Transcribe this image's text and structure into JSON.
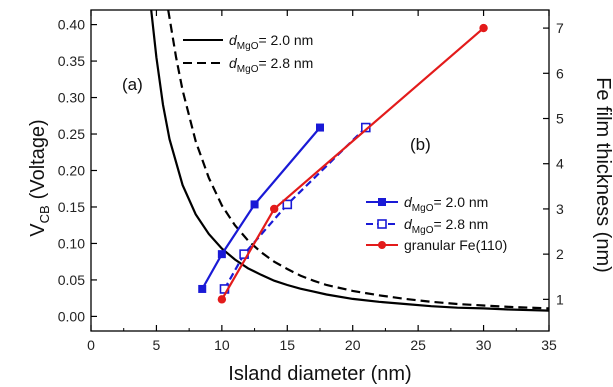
{
  "chart_data": {
    "type": "line",
    "xlabel": "Island diameter (nm)",
    "ylabel_left": "V",
    "ylabel_left_sub": "CB",
    "ylabel_left_suffix": "(Voltage)",
    "ylabel_right": "Fe film thickness (nm)",
    "xlim": [
      0,
      35
    ],
    "ylim_left": [
      -0.02,
      0.42
    ],
    "ylim_right": [
      0.3,
      7.4
    ],
    "x_ticks": [
      0,
      5,
      10,
      15,
      20,
      25,
      30,
      35
    ],
    "y_left_ticks": [
      0.0,
      0.05,
      0.1,
      0.15,
      0.2,
      0.25,
      0.3,
      0.35,
      0.4
    ],
    "y_left_tick_labels": [
      "0.00",
      "0.05",
      "0.10",
      "0.15",
      "0.20",
      "0.25",
      "0.30",
      "0.35",
      "0.40"
    ],
    "y_right_ticks": [
      1,
      2,
      3,
      4,
      5,
      6,
      7
    ],
    "annotations": [
      "(a)",
      "(b)"
    ],
    "curves_left_axis": [
      {
        "name": "d_MgO= 2.0 nm",
        "label_main": "d",
        "label_sub": "MgO",
        "label_tail": "= 2.0 nm",
        "style": "solid",
        "color": "#000000",
        "x": [
          4.6,
          5.0,
          5.5,
          6.0,
          7.0,
          8.0,
          9.0,
          10.0,
          11.0,
          12.0,
          13.0,
          14.0,
          15.0,
          16.0,
          17.0,
          18.0,
          20.0,
          22.0,
          24.0,
          26.0,
          28.0,
          30.0,
          32.0,
          35.0
        ],
        "y": [
          0.42,
          0.355,
          0.29,
          0.243,
          0.18,
          0.14,
          0.113,
          0.093,
          0.078,
          0.066,
          0.057,
          0.049,
          0.043,
          0.038,
          0.034,
          0.03,
          0.024,
          0.02,
          0.017,
          0.014,
          0.012,
          0.011,
          0.0095,
          0.008
        ]
      },
      {
        "name": "d_MgO= 2.8 nm",
        "label_main": "d",
        "label_sub": "MgO",
        "label_tail": "= 2.8 nm",
        "style": "dashed",
        "color": "#000000",
        "x": [
          5.9,
          6.5,
          7.0,
          8.0,
          9.0,
          10.0,
          11.0,
          12.0,
          13.0,
          14.0,
          15.0,
          16.0,
          17.0,
          18.0,
          20.0,
          22.0,
          24.0,
          26.0,
          28.0,
          30.0,
          32.0,
          35.0
        ],
        "y": [
          0.42,
          0.355,
          0.31,
          0.24,
          0.19,
          0.152,
          0.125,
          0.104,
          0.088,
          0.075,
          0.065,
          0.056,
          0.049,
          0.043,
          0.035,
          0.029,
          0.024,
          0.02,
          0.017,
          0.015,
          0.013,
          0.011
        ]
      }
    ],
    "series_right_axis": [
      {
        "name": "d_MgO= 2.0 nm",
        "label_main": "d",
        "label_sub": "MgO",
        "label_tail": "= 2.0 nm",
        "color": "#1a1ad6",
        "line_style": "solid",
        "marker": "filled-square",
        "x": [
          8.5,
          10.0,
          12.5,
          17.5
        ],
        "y": [
          1.23,
          2.0,
          3.1,
          4.8
        ]
      },
      {
        "name": "d_MgO= 2.8 nm",
        "label_main": "d",
        "label_sub": "MgO",
        "label_tail": "= 2.8 nm",
        "color": "#1a1ad6",
        "line_style": "dashed",
        "marker": "open-square",
        "x": [
          10.2,
          11.7,
          15.0,
          21.0
        ],
        "y": [
          1.23,
          2.0,
          3.1,
          4.8
        ]
      },
      {
        "name": "granular Fe(110)",
        "label_main": "granular Fe(110)",
        "label_sub": "",
        "label_tail": "",
        "color": "#e31b1b",
        "line_style": "solid",
        "marker": "filled-circle",
        "x": [
          10.0,
          14.0,
          30.0
        ],
        "y": [
          1.0,
          3.0,
          7.0
        ]
      }
    ]
  }
}
